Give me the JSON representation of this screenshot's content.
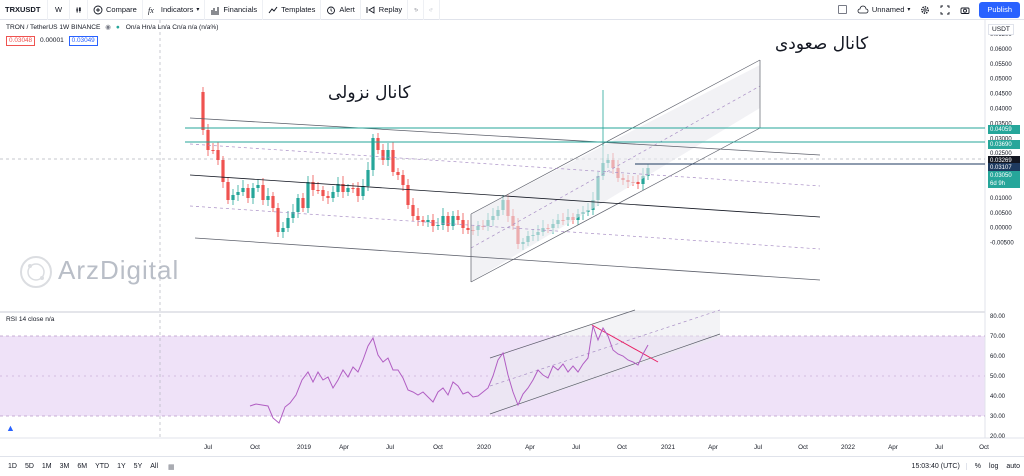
{
  "toolbar": {
    "symbol": "TRXUSDT",
    "interval": "W",
    "compare": "Compare",
    "indicators": "Indicators",
    "financials": "Financials",
    "templates": "Templates",
    "alert": "Alert",
    "replay": "Replay",
    "layout_name": "Unnamed",
    "publish": "Publish"
  },
  "legend": {
    "title": "TRON / TetherUS  1W  BINANCE",
    "ohlc": "On/a Hn/a Ln/a Cn/a n/a (n/a%)",
    "bid": "0.03048",
    "spread": "0.00001",
    "ask": "0.03049"
  },
  "currency": "USDT",
  "annotations": {
    "descending_channel": "کانال نزولی",
    "ascending_channel": "کانال صعودی"
  },
  "watermark": "ArzDigital",
  "rsi_legend": "RSI 14 close  n/a",
  "price_axis": [
    "0.06500",
    "0.06000",
    "0.05500",
    "0.05000",
    "0.04500",
    "0.04000",
    "0.03500",
    "0.03000",
    "0.02500",
    "0.02000",
    "0.01500",
    "0.01000",
    "0.00500",
    "0.00000",
    "-0.00500"
  ],
  "price_tags": [
    {
      "label": "0.04059",
      "color": "#26a69a"
    },
    {
      "label": "0.03690",
      "color": "#26a69a"
    },
    {
      "label": "0.03269",
      "color": "#131722"
    },
    {
      "label": "0.03107",
      "color": "#1e3a5f"
    },
    {
      "label": "0.03050",
      "color": "#26a69a"
    },
    {
      "label": "6d 9h",
      "color": "#26a69a"
    }
  ],
  "rsi_axis": [
    "80.00",
    "70.00",
    "60.00",
    "50.00",
    "40.00",
    "30.00",
    "20.00"
  ],
  "time_axis": [
    "Jul",
    "Oct",
    "2019",
    "Apr",
    "Jul",
    "Oct",
    "2020",
    "Apr",
    "Jul",
    "Oct",
    "2021",
    "Apr",
    "Jul",
    "Oct",
    "2022",
    "Apr",
    "Jul",
    "Oct"
  ],
  "ranges": [
    "1D",
    "5D",
    "1M",
    "3M",
    "6M",
    "YTD",
    "1Y",
    "5Y",
    "All"
  ],
  "clock": "15:03:40 (UTC)",
  "scale_options": [
    "%",
    "log",
    "auto"
  ],
  "colors": {
    "up": "#26a69a",
    "down": "#ef5350",
    "rsi": "#b15ec3",
    "rsi_band": "#efe2f8",
    "accent": "#2962ff",
    "channel": "#787b86"
  },
  "icons": [
    "plus-circle-icon",
    "fx-icon",
    "indicators-icon",
    "financials-icon",
    "templates-icon",
    "alert-icon",
    "replay-icon",
    "undo-icon",
    "redo-icon",
    "cloud-icon",
    "settings-icon",
    "fullscreen-icon",
    "camera-icon"
  ]
}
